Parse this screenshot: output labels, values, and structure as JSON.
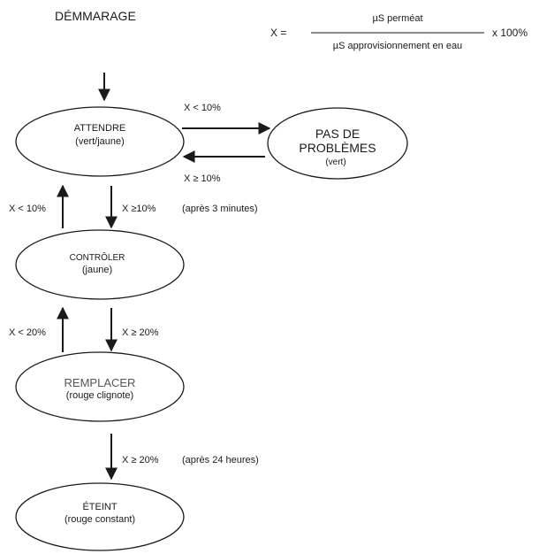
{
  "start_label": "DÉMMARAGE",
  "formula": {
    "lhs": "X =",
    "numerator": "µS perméat",
    "denominator": "µS approvisionnement en eau",
    "factor": "x 100%"
  },
  "states": {
    "attendre": {
      "title": "ATTENDRE",
      "subtitle": "(vert/jaune)"
    },
    "pas_de_problemes": {
      "title_line1": "PAS DE",
      "title_line2": "PROBLÈMES",
      "subtitle": "(vert)"
    },
    "controler": {
      "title": "CONTRÔLER",
      "subtitle": "(jaune)"
    },
    "remplacer": {
      "title": "REMPLACER",
      "subtitle": "(rouge clignote)"
    },
    "eteint": {
      "title": "ÉTEINT",
      "subtitle": "(rouge constant)"
    }
  },
  "transitions": {
    "attendre_to_ok": "X < 10%",
    "ok_to_attendre": "X ≥ 10%",
    "controler_to_attendre": "X < 10%",
    "attendre_to_controler": "X ≥10%",
    "attendre_to_controler_note": "(après 3 minutes)",
    "remplacer_to_controler": "X < 20%",
    "controler_to_remplacer": "X ≥ 20%",
    "remplacer_to_eteint": "X ≥ 20%",
    "remplacer_to_eteint_note": "(après 24 heures)"
  },
  "colors": {
    "stroke": "#1a1a1a",
    "muted_text": "#555555"
  }
}
